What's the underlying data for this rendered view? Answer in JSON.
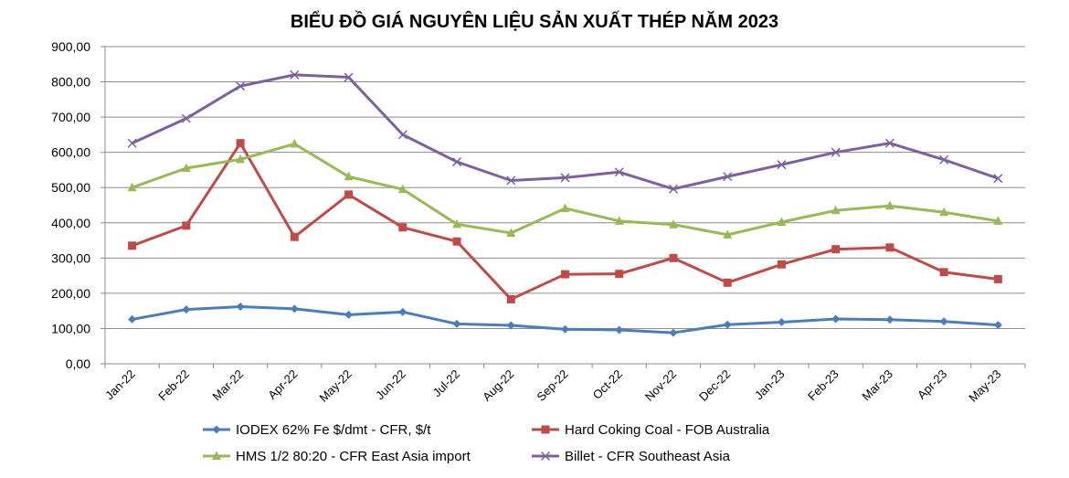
{
  "chart_data": {
    "type": "line",
    "title": "BIỂU ĐỒ GIÁ NGUYÊN LIỆU SẢN XUẤT THÉP NĂM 2023",
    "xlabel": "",
    "ylabel": "",
    "ylim": [
      0,
      900
    ],
    "yticks": [
      "0,00",
      "100,00",
      "200,00",
      "300,00",
      "400,00",
      "500,00",
      "600,00",
      "700,00",
      "800,00",
      "900,00"
    ],
    "grid": true,
    "legend_position": "bottom",
    "categories": [
      "Jan-22",
      "Feb-22",
      "Mar-22",
      "Apr-22",
      "May-22",
      "Jun-22",
      "Jul-22",
      "Aug-22",
      "Sep-22",
      "Oct-22",
      "Nov-22",
      "Dec-22",
      "Jan-23",
      "Feb-23",
      "Mar-23",
      "Apr-23",
      "May-23"
    ],
    "series": [
      {
        "name": "IODEX 62% Fe $/dmt - CFR, $/t",
        "color": "#4a7ebb",
        "marker": "diamond",
        "values": [
          126,
          154,
          162,
          156,
          139,
          147,
          113,
          109,
          98,
          96,
          88,
          111,
          118,
          127,
          125,
          120,
          110
        ]
      },
      {
        "name": "Hard Coking Coal - FOB Australia",
        "color": "#be4b48",
        "marker": "square",
        "values": [
          335,
          392,
          626,
          360,
          480,
          387,
          347,
          183,
          254,
          255,
          300,
          230,
          282,
          325,
          330,
          260,
          240
        ]
      },
      {
        "name": "HMS 1/2 80:20 - CFR East Asia import",
        "color": "#98b954",
        "marker": "triangle",
        "values": [
          500,
          555,
          580,
          624,
          531,
          495,
          396,
          371,
          441,
          405,
          395,
          366,
          402,
          435,
          448,
          430,
          405
        ]
      },
      {
        "name": "Billet - CFR Southeast Asia",
        "color": "#7d60a0",
        "marker": "x",
        "values": [
          626,
          696,
          788,
          820,
          813,
          650,
          573,
          520,
          528,
          544,
          496,
          531,
          565,
          600,
          626,
          579,
          526
        ]
      }
    ]
  }
}
